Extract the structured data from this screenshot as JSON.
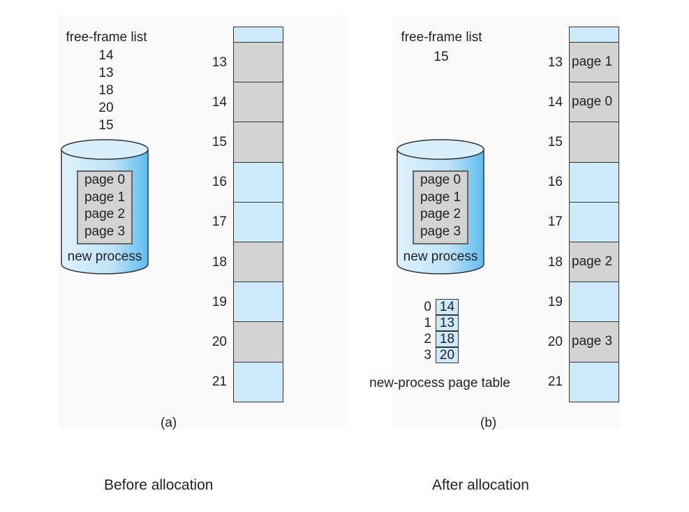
{
  "colors": {
    "free": "#cdeafb",
    "used": "#d3d3d3",
    "disk_fill": "#bfe3f6",
    "disk_edge": "#6fc3ee"
  },
  "panel_a": {
    "free_list_title": "free-frame list",
    "free_list": [
      "14",
      "13",
      "18",
      "20",
      "15"
    ],
    "disk_pages": [
      "page 0",
      "page 1",
      "page 2",
      "page 3"
    ],
    "disk_label": "new process",
    "frames": [
      {
        "number": "13",
        "state": "used",
        "content": ""
      },
      {
        "number": "14",
        "state": "used",
        "content": ""
      },
      {
        "number": "15",
        "state": "used",
        "content": ""
      },
      {
        "number": "16",
        "state": "free",
        "content": ""
      },
      {
        "number": "17",
        "state": "free",
        "content": ""
      },
      {
        "number": "18",
        "state": "used",
        "content": ""
      },
      {
        "number": "19",
        "state": "free",
        "content": ""
      },
      {
        "number": "20",
        "state": "used",
        "content": ""
      },
      {
        "number": "21",
        "state": "free",
        "content": ""
      }
    ],
    "sublabel": "(a)"
  },
  "panel_b": {
    "free_list_title": "free-frame list",
    "free_list": [
      "15"
    ],
    "disk_pages": [
      "page 0",
      "page 1",
      "page 2",
      "page 3"
    ],
    "disk_label": "new process",
    "page_table_indices": [
      "0",
      "1",
      "2",
      "3"
    ],
    "page_table_values": [
      "14",
      "13",
      "18",
      "20"
    ],
    "page_table_caption": "new-process page table",
    "frames": [
      {
        "number": "13",
        "state": "used",
        "content": "page 1"
      },
      {
        "number": "14",
        "state": "used",
        "content": "page 0"
      },
      {
        "number": "15",
        "state": "used",
        "content": ""
      },
      {
        "number": "16",
        "state": "free",
        "content": ""
      },
      {
        "number": "17",
        "state": "free",
        "content": ""
      },
      {
        "number": "18",
        "state": "used",
        "content": "page 2"
      },
      {
        "number": "19",
        "state": "free",
        "content": ""
      },
      {
        "number": "20",
        "state": "used",
        "content": "page 3"
      },
      {
        "number": "21",
        "state": "free",
        "content": ""
      }
    ],
    "sublabel": "(b)"
  },
  "captions": {
    "left": "Before allocation",
    "right": "After allocation"
  }
}
